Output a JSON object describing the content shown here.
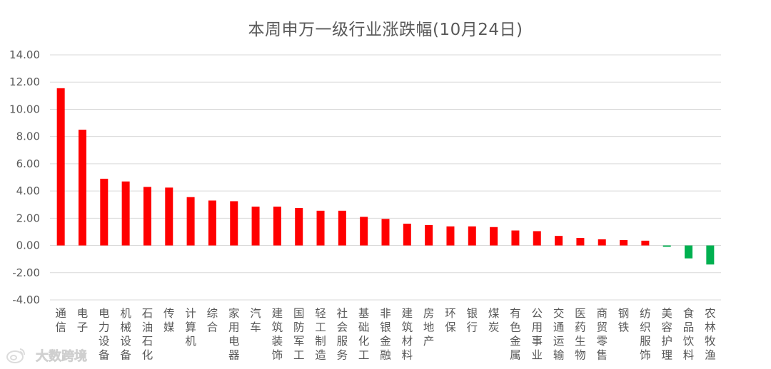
{
  "chart_data": {
    "type": "bar",
    "title": "本周申万一级行业涨跌幅(10月24日)",
    "xlabel": "",
    "ylabel": "",
    "ylim": [
      -4,
      14
    ],
    "ytick_labels": [
      "14.00",
      "12.00",
      "10.00",
      "8.00",
      "6.00",
      "4.00",
      "2.00",
      "0.00",
      "-2.00",
      "-4.00"
    ],
    "ytick_values": [
      14,
      12,
      10,
      8,
      6,
      4,
      2,
      0,
      -2,
      -4
    ],
    "grid": true,
    "legend": "none",
    "categories": [
      "通信",
      "电子",
      "电力设备",
      "机械设备",
      "石油石化",
      "传媒",
      "计算机",
      "综合",
      "家用电器",
      "汽车",
      "建筑装饰",
      "国防军工",
      "轻工制造",
      "社会服务",
      "基础化工",
      "非银金融",
      "建筑材料",
      "房地产",
      "环保",
      "银行",
      "煤炭",
      "有色金属",
      "公用事业",
      "交通运输",
      "医药生物",
      "商贸零售",
      "钢铁",
      "纺织服饰",
      "美容护理",
      "食品饮料",
      "农林牧渔"
    ],
    "values": [
      11.55,
      8.5,
      4.9,
      4.7,
      4.3,
      4.25,
      3.55,
      3.3,
      3.25,
      2.85,
      2.85,
      2.75,
      2.55,
      2.55,
      2.1,
      1.95,
      1.6,
      1.5,
      1.4,
      1.4,
      1.35,
      1.1,
      1.05,
      0.7,
      0.55,
      0.45,
      0.4,
      0.35,
      -0.1,
      -0.95,
      -1.4
    ]
  },
  "colors": {
    "positive": "#ff0000",
    "negative": "#00b050",
    "gridline": "#d9d9d9",
    "text": "#595959"
  },
  "watermark": {
    "text": "大数跨境",
    "icon": "weibo-logo-icon"
  }
}
